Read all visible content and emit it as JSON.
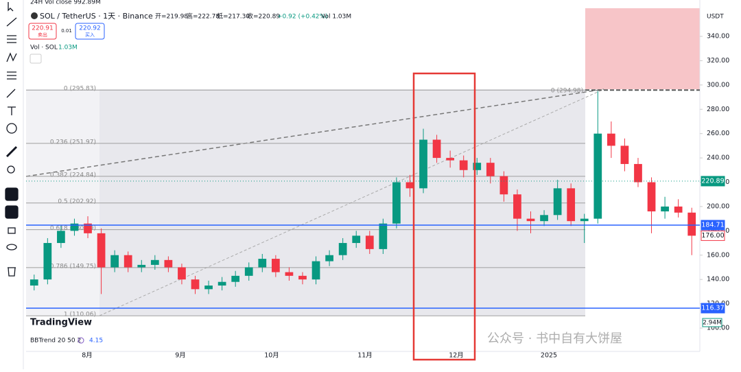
{
  "top": "24H Vol close 992.89M",
  "header": {
    "symbol": "SOL / TetherUS · 1天 · Binance",
    "open": "开=219.98",
    "high": "高=222.78",
    "low": "低=217.30",
    "close": "收=220.89",
    "change": "+0.92 (+0.42%)",
    "vol": "Vol 1.03M",
    "sell_price": "220.91",
    "sell": "卖出",
    "spread": "0.01",
    "buy_price": "220.92",
    "buy": "买入",
    "vol_label": "Vol · SOL",
    "vol_value": "1.03M"
  },
  "currency": "USDT",
  "price_ticks": [
    {
      "value": 340,
      "label": "340.00"
    },
    {
      "value": 320,
      "label": "320.00"
    },
    {
      "value": 300,
      "label": "300.00"
    },
    {
      "value": 280,
      "label": "280.00"
    },
    {
      "value": 260,
      "label": "260.00"
    },
    {
      "value": 240,
      "label": "240.00"
    },
    {
      "value": 220,
      "label": "220.00"
    },
    {
      "value": 200,
      "label": "200.00"
    },
    {
      "value": 180,
      "label": "180.00"
    },
    {
      "value": 160,
      "label": "160.00"
    },
    {
      "value": 140,
      "label": "140.00"
    },
    {
      "value": 120,
      "label": "120.00"
    },
    {
      "value": 100,
      "label": "100.00"
    }
  ],
  "price_range": [
    100,
    340
  ],
  "fib_levels": [
    {
      "price": 295.83,
      "label": "0 (295.83)"
    },
    {
      "price": 251.97,
      "label": "0.236 (251.97)"
    },
    {
      "price": 224.84,
      "label": "0.382 (224.84)"
    },
    {
      "price": 202.92,
      "label": "0.5 (202.92)"
    },
    {
      "price": 180.99,
      "label": "0.618 (180.99)"
    },
    {
      "price": 149.75,
      "label": "0.786 (149.75)"
    },
    {
      "price": 110.06,
      "label": "1 (110.06)"
    }
  ],
  "fib_end_label": "0 (294.98)",
  "price_badges": [
    {
      "price": 220.89,
      "label": "220.89",
      "color": "#089981"
    },
    {
      "price": 184.71,
      "label": "184.71",
      "color": "#2962ff"
    },
    {
      "price": 176.0,
      "label": "176.00",
      "color": "#f23645"
    },
    {
      "price": 116.37,
      "label": "116.37",
      "color": "#2962ff"
    }
  ],
  "vol_badge": "2.94M",
  "months": [
    "8月",
    "9月",
    "10月",
    "11月",
    "12月",
    "2025"
  ],
  "indicator": {
    "name": "BBTrend 20 50 2",
    "value": "4.15"
  },
  "brand": "TradingView",
  "watermark": "公众号 · 书中自有大饼屋",
  "candles": [
    [
      135,
      144,
      131,
      140
    ],
    [
      140,
      174,
      136,
      170
    ],
    [
      170,
      184,
      166,
      180
    ],
    [
      180,
      190,
      176,
      186
    ],
    [
      186,
      192,
      174,
      178
    ],
    [
      178,
      182,
      128,
      150
    ],
    [
      150,
      164,
      146,
      160
    ],
    [
      160,
      163,
      146,
      150
    ],
    [
      150,
      156,
      146,
      152
    ],
    [
      152,
      160,
      148,
      156
    ],
    [
      156,
      159,
      146,
      150
    ],
    [
      150,
      153,
      136,
      140
    ],
    [
      140,
      143,
      128,
      132
    ],
    [
      132,
      139,
      128,
      135
    ],
    [
      135,
      142,
      131,
      138
    ],
    [
      138,
      147,
      134,
      143
    ],
    [
      143,
      154,
      139,
      150
    ],
    [
      150,
      161,
      146,
      157
    ],
    [
      157,
      160,
      142,
      146
    ],
    [
      146,
      150,
      139,
      143
    ],
    [
      143,
      146,
      136,
      140
    ],
    [
      140,
      159,
      136,
      155
    ],
    [
      155,
      164,
      151,
      160
    ],
    [
      160,
      174,
      156,
      170
    ],
    [
      170,
      180,
      166,
      176
    ],
    [
      176,
      180,
      161,
      165
    ],
    [
      165,
      190,
      161,
      186
    ],
    [
      186,
      224,
      182,
      220
    ],
    [
      220,
      226,
      208,
      215
    ],
    [
      215,
      264,
      211,
      255
    ],
    [
      255,
      259,
      236,
      240
    ],
    [
      240,
      246,
      232,
      238
    ],
    [
      238,
      242,
      224,
      230
    ],
    [
      230,
      240,
      226,
      236
    ],
    [
      236,
      240,
      219,
      225
    ],
    [
      225,
      229,
      204,
      210
    ],
    [
      210,
      214,
      180,
      190
    ],
    [
      190,
      196,
      178,
      188
    ],
    [
      188,
      197,
      184,
      193
    ],
    [
      193,
      222,
      189,
      215
    ],
    [
      215,
      219,
      184,
      188
    ],
    [
      188,
      194,
      170,
      190
    ],
    [
      190,
      295,
      186,
      260
    ],
    [
      260,
      270,
      240,
      250
    ],
    [
      250,
      256,
      229,
      235
    ],
    [
      235,
      240,
      216,
      220
    ],
    [
      220,
      224,
      178,
      196
    ],
    [
      196,
      208,
      190,
      200
    ],
    [
      200,
      206,
      191,
      195
    ],
    [
      195,
      199,
      160,
      176
    ]
  ]
}
